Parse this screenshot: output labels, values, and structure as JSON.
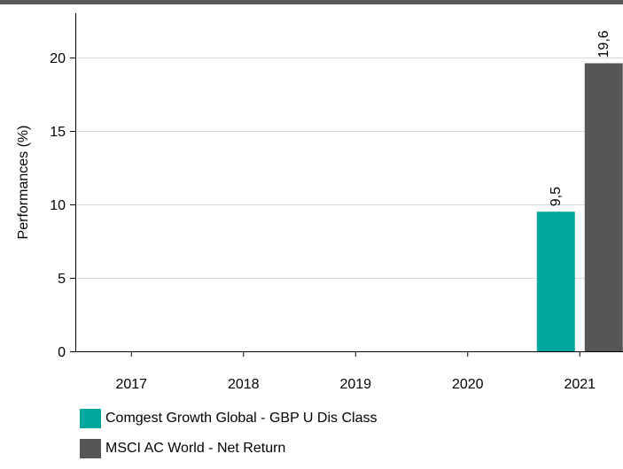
{
  "colors": {
    "top_bar": "#595959",
    "fund": "#00a89c",
    "index": "#565656",
    "grid": "#d9d9d9",
    "axis": "#000000"
  },
  "chart_data": {
    "type": "bar",
    "categories": [
      "2017",
      "2018",
      "2019",
      "2020",
      "2021"
    ],
    "series": [
      {
        "name": "Comgest Growth Global - GBP U Dis Class",
        "values": [
          null,
          null,
          null,
          null,
          9.5
        ],
        "labels": [
          "",
          "",
          "",
          "",
          "9,5"
        ]
      },
      {
        "name": "MSCI AC World - Net Return",
        "values": [
          null,
          null,
          null,
          null,
          19.6
        ],
        "labels": [
          "",
          "",
          "",
          "",
          "19,6"
        ]
      }
    ],
    "title": "",
    "xlabel": "",
    "ylabel": "Performances (%)",
    "ylim": [
      0,
      23
    ],
    "yticks": [
      0,
      5,
      10,
      15,
      20
    ],
    "ytick_labels": [
      "0",
      "5",
      "10",
      "15",
      "20"
    ],
    "grid": true,
    "legend": "bottom-left"
  },
  "legend": {
    "items": [
      {
        "label": "Comgest Growth Global - GBP U Dis Class",
        "color": "#00a89c"
      },
      {
        "label": "MSCI AC World - Net Return",
        "color": "#565656"
      }
    ]
  }
}
